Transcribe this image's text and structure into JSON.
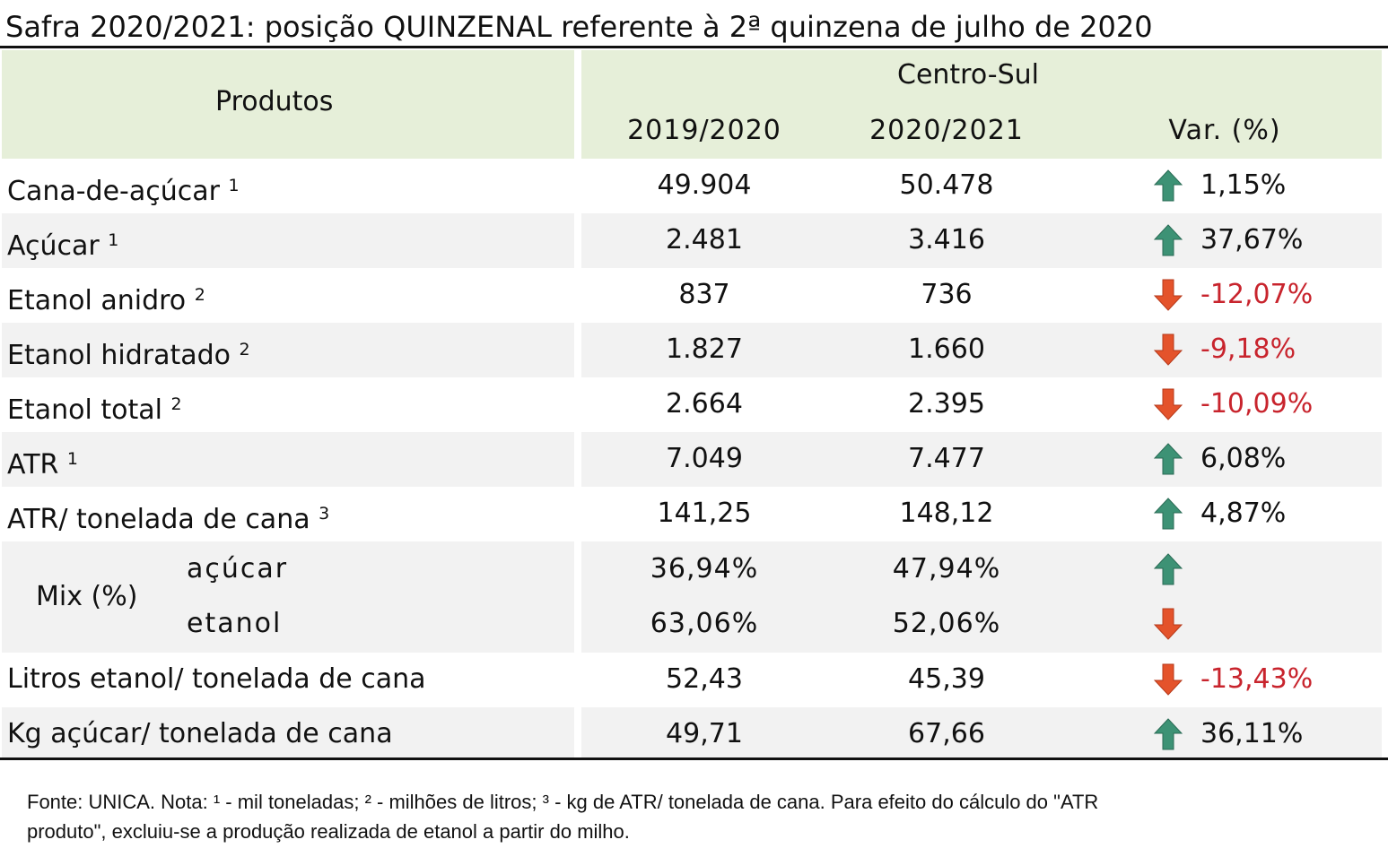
{
  "title": "Safra 2020/2021: posição QUINZENAL referente à 2ª quinzena de julho de 2020",
  "table": {
    "header": {
      "product": "Produtos",
      "region": "Centro-Sul",
      "columns": [
        "2019/2020",
        "2020/2021",
        "Var. (%)"
      ]
    },
    "rows": [
      {
        "label": "Cana-de-açúcar",
        "note": "1",
        "values": [
          "49.904",
          "50.478"
        ],
        "var": "1,15%",
        "trend": "up"
      },
      {
        "label": "Açúcar",
        "note": "1",
        "values": [
          "2.481",
          "3.416"
        ],
        "var": "37,67%",
        "trend": "up"
      },
      {
        "label": "Etanol anidro",
        "note": "2",
        "values": [
          "837",
          "736"
        ],
        "var": "-12,07%",
        "trend": "down"
      },
      {
        "label": "Etanol hidratado",
        "note": "2",
        "values": [
          "1.827",
          "1.660"
        ],
        "var": "-9,18%",
        "trend": "down"
      },
      {
        "label": "Etanol total",
        "note": "2",
        "values": [
          "2.664",
          "2.395"
        ],
        "var": "-10,09%",
        "trend": "down"
      },
      {
        "label": "ATR",
        "note": "1",
        "values": [
          "7.049",
          "7.477"
        ],
        "var": "6,08%",
        "trend": "up"
      },
      {
        "label": "ATR/ tonelada de cana",
        "note": "3",
        "values": [
          "141,25",
          "148,12"
        ],
        "var": "4,87%",
        "trend": "up"
      },
      {
        "label": "Mix (%)",
        "subrows": [
          {
            "label": "açúcar",
            "values": [
              "36,94%",
              "47,94%"
            ],
            "trend": "up"
          },
          {
            "label": "etanol",
            "values": [
              "63,06%",
              "52,06%"
            ],
            "trend": "down"
          }
        ]
      },
      {
        "label": "Litros etanol/ tonelada de cana",
        "values": [
          "52,43",
          "45,39"
        ],
        "var": "-13,43%",
        "trend": "down"
      },
      {
        "label": "Kg açúcar/ tonelada de cana",
        "values": [
          "49,71",
          "67,66"
        ],
        "var": "36,11%",
        "trend": "up"
      }
    ]
  },
  "footnote": [
    "Fonte: UNICA. Nota: ¹ - mil toneladas; ² - milhões de litros; ³ - kg de ATR/ tonelada de cana. Para efeito do cálculo do \"ATR",
    "produto\", excluiu-se a produção realizada de etanol a partir do milho."
  ]
}
